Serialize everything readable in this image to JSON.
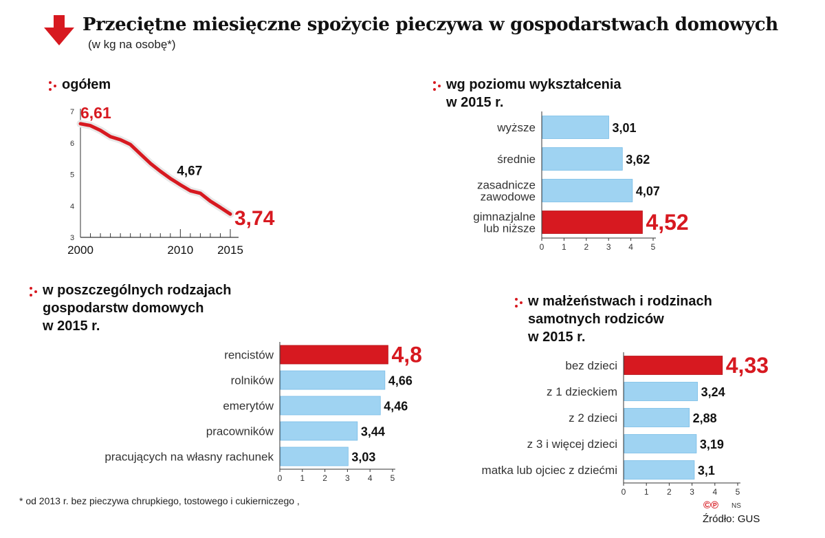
{
  "title": "Przeciętne miesięczne spożycie pieczywa w gospodarstwach domowych",
  "subtitle": "(w kg na osobę*)",
  "footnote": "* od 2013 r.  bez pieczywa chrupkiego, tostowego i cukierniczego ,",
  "copyright": "©℗",
  "copyright_initials": "NS",
  "source": "Źródło: GUS",
  "colors": {
    "highlight": "#d71920",
    "bar": "#9fd3f2",
    "bar_edge": "#79bde6",
    "text": "#111111"
  },
  "chart_data": [
    {
      "type": "line",
      "title": "ogółem",
      "x": [
        2000,
        2001,
        2002,
        2003,
        2004,
        2005,
        2006,
        2007,
        2008,
        2009,
        2010,
        2011,
        2012,
        2013,
        2014,
        2015
      ],
      "values": [
        6.61,
        6.55,
        6.4,
        6.2,
        6.1,
        5.95,
        5.65,
        5.35,
        5.1,
        4.87,
        4.67,
        4.48,
        4.4,
        4.15,
        3.95,
        3.74
      ],
      "xlim": [
        2000,
        2015
      ],
      "ylim": [
        3,
        7
      ],
      "x_tick_labels": [
        "2000",
        "2010",
        "2015"
      ],
      "y_ticks": [
        3,
        4,
        5,
        6,
        7
      ],
      "annotations": [
        {
          "x": 2000,
          "label": "6,61"
        },
        {
          "x": 2010,
          "label": "4,67"
        },
        {
          "x": 2015,
          "label": "3,74"
        }
      ]
    },
    {
      "type": "bar",
      "orientation": "horizontal",
      "title_lines": [
        "wg poziomu wykształcenia",
        "w 2015 r."
      ],
      "categories": [
        [
          "wyższe"
        ],
        [
          "średnie"
        ],
        [
          "zasadnicze",
          "zawodowe"
        ],
        [
          "gimnazjalne",
          "lub niższe"
        ]
      ],
      "values": [
        3.01,
        3.62,
        4.07,
        4.52
      ],
      "value_labels": [
        "3,01",
        "3,62",
        "4,07",
        "4,52"
      ],
      "highlight_index": 3,
      "xlim": [
        0,
        5
      ],
      "x_ticks": [
        "0",
        "1",
        "2",
        "3",
        "4",
        "5"
      ]
    },
    {
      "type": "bar",
      "orientation": "horizontal",
      "title_lines": [
        "w poszczególnych rodzajach",
        "gospodarstw domowych",
        "w 2015 r."
      ],
      "categories": [
        [
          "rencistów"
        ],
        [
          "rolników"
        ],
        [
          "emerytów"
        ],
        [
          "pracowników"
        ],
        [
          "pracujących na własny rachunek"
        ]
      ],
      "values": [
        4.8,
        4.66,
        4.46,
        3.44,
        3.03
      ],
      "value_labels": [
        "4,8",
        "4,66",
        "4,46",
        "3,44",
        "3,03"
      ],
      "highlight_index": 0,
      "xlim": [
        0,
        5
      ],
      "x_ticks": [
        "0",
        "1",
        "2",
        "3",
        "4",
        "5"
      ]
    },
    {
      "type": "bar",
      "orientation": "horizontal",
      "title_lines": [
        "w małżeństwach i rodzinach",
        "samotnych rodziców",
        "w 2015 r."
      ],
      "categories": [
        [
          "bez dzieci"
        ],
        [
          "z 1 dzieckiem"
        ],
        [
          "z 2 dzieci"
        ],
        [
          "z 3 i więcej dzieci"
        ],
        [
          "matka lub ojciec z dziećmi"
        ]
      ],
      "values": [
        4.33,
        3.24,
        2.88,
        3.19,
        3.1
      ],
      "value_labels": [
        "4,33",
        "3,24",
        "2,88",
        "3,19",
        "3,1"
      ],
      "highlight_index": 0,
      "xlim": [
        0,
        5
      ],
      "x_ticks": [
        "0",
        "1",
        "2",
        "3",
        "4",
        "5"
      ]
    }
  ]
}
